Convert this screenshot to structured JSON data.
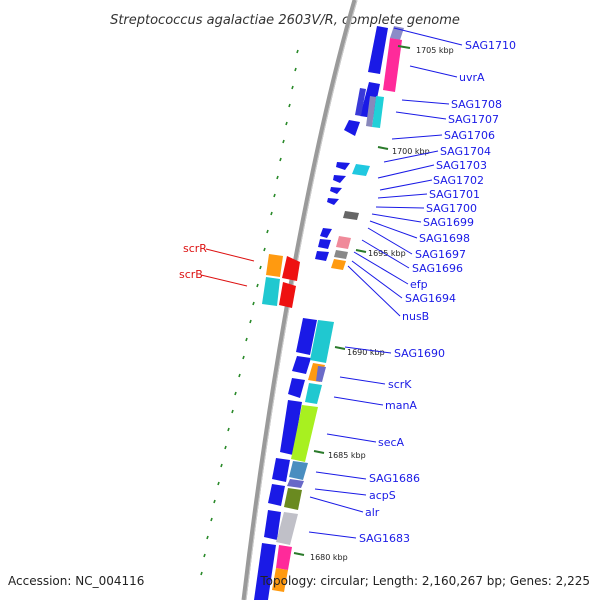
{
  "map": {
    "title": "Streptococcus agalactiae 2603V/R, complete genome",
    "accession": "Accession: NC_004116",
    "topology": "Topology: circular; Length: 2,160,267 bp; Genes: 2,225"
  },
  "ticks": [
    "1705 kbp",
    "1700 kbp",
    "1695 kbp",
    "1690 kbp",
    "1685 kbp",
    "1680 kbp"
  ],
  "labels_right": [
    "SAG1710",
    "uvrA",
    "SAG1708",
    "SAG1707",
    "SAG1706",
    "SAG1704",
    "SAG1703",
    "SAG1702",
    "SAG1701",
    "SAG1700",
    "SAG1699",
    "SAG1698",
    "SAG1697",
    "SAG1696",
    "efp",
    "SAG1694",
    "nusB",
    "SAG1690",
    "scrK",
    "manA",
    "secA",
    "SAG1686",
    "acpS",
    "alr",
    "SAG1683"
  ],
  "labels_left": [
    "scrR",
    "scrB"
  ],
  "colors": {
    "label_right": "#1a1ae6",
    "label_left": "#dd1111",
    "tick": "#2a7a2a",
    "backbone": "#999999"
  }
}
